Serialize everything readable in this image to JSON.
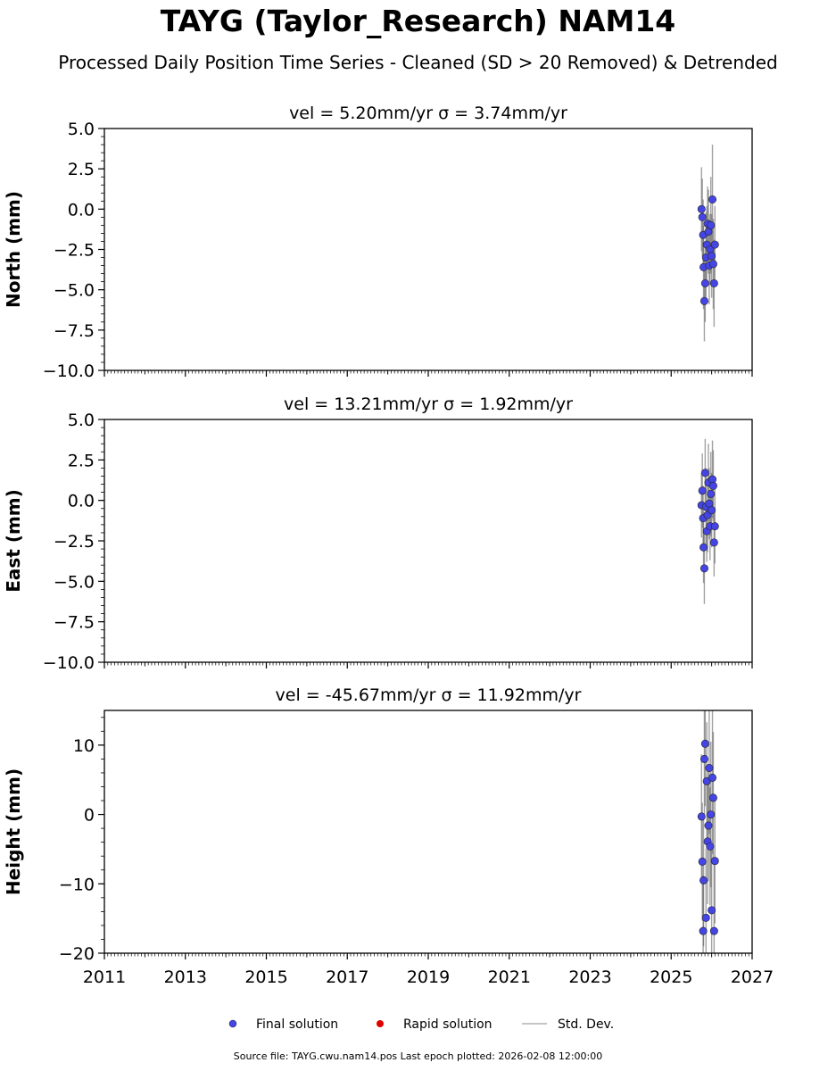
{
  "title": "TAYG (Taylor_Research) NAM14",
  "subtitle": "Processed Daily Position Time Series - Cleaned (SD > 20 Removed) & Detrended",
  "footer": "Source file: TAYG.cwu.nam14.pos  Last epoch plotted: 2026-02-08 12:00:00",
  "legend": [
    "Final solution",
    "Rapid solution",
    "Std. Dev."
  ],
  "colors": {
    "final": "#4545e6",
    "rapid": "#e00000",
    "stddev": "#b0b0b0",
    "errorbar": "#555555"
  },
  "chart_data": [
    {
      "type": "scatter",
      "panel": "north",
      "title": "vel = 5.20mm/yr   σ = 3.74mm/yr",
      "ylabel": "North (mm)",
      "xlim": [
        2011,
        2027
      ],
      "ylim": [
        -10,
        5
      ],
      "yticks": [
        "5.0",
        "2.5",
        "0.0",
        "−2.5",
        "−5.0",
        "−7.5",
        "−10.0"
      ],
      "ytick_values": [
        5,
        2.5,
        0,
        -2.5,
        -5,
        -7.5,
        -10
      ],
      "xticks": [
        "2011",
        "2013",
        "2015",
        "2017",
        "2019",
        "2021",
        "2023",
        "2025",
        "2027"
      ],
      "series": [
        {
          "name": "Final solution",
          "x": [
            2025.75,
            2025.77,
            2025.79,
            2025.8,
            2025.82,
            2025.84,
            2025.86,
            2025.88,
            2025.9,
            2025.92,
            2025.94,
            2025.96,
            2025.98,
            2026.0,
            2026.02,
            2026.04,
            2026.06,
            2026.08
          ],
          "y": [
            0.0,
            -0.5,
            -1.6,
            -3.6,
            -5.7,
            -4.6,
            -3.0,
            -2.2,
            -0.9,
            -1.4,
            -3.5,
            -2.5,
            -1.0,
            -2.9,
            0.6,
            -3.4,
            -4.6,
            -2.2
          ],
          "yerr": [
            2.6,
            2.4,
            2.2,
            2.6,
            2.5,
            2.4,
            2.8,
            2.4,
            2.3,
            2.6,
            2.4,
            2.2,
            3.0,
            2.6,
            3.4,
            2.8,
            2.7,
            2.4
          ]
        },
        {
          "name": "Rapid solution",
          "x": [],
          "y": []
        }
      ]
    },
    {
      "type": "scatter",
      "panel": "east",
      "title": "vel = 13.21mm/yr   σ = 1.92mm/yr",
      "ylabel": "East (mm)",
      "xlim": [
        2011,
        2027
      ],
      "ylim": [
        -10,
        5
      ],
      "yticks": [
        "5.0",
        "2.5",
        "0.0",
        "−2.5",
        "−5.0",
        "−7.5",
        "−10.0"
      ],
      "ytick_values": [
        5,
        2.5,
        0,
        -2.5,
        -5,
        -7.5,
        -10
      ],
      "xticks": [
        "2011",
        "2013",
        "2015",
        "2017",
        "2019",
        "2021",
        "2023",
        "2025",
        "2027"
      ],
      "series": [
        {
          "name": "Final solution",
          "x": [
            2025.75,
            2025.77,
            2025.79,
            2025.8,
            2025.82,
            2025.84,
            2025.86,
            2025.88,
            2025.9,
            2025.92,
            2025.94,
            2025.96,
            2025.98,
            2026.0,
            2026.02,
            2026.04,
            2026.06,
            2026.08
          ],
          "y": [
            -0.3,
            0.6,
            -1.1,
            -2.9,
            -4.2,
            1.7,
            -0.4,
            -1.9,
            -0.9,
            1.1,
            -0.2,
            -1.6,
            0.4,
            -0.6,
            1.3,
            0.9,
            -2.6,
            -1.6
          ],
          "yerr": [
            2.0,
            2.3,
            2.0,
            2.2,
            2.2,
            2.1,
            2.4,
            1.9,
            2.3,
            2.4,
            2.2,
            2.1,
            2.6,
            2.3,
            2.4,
            2.2,
            2.1,
            2.3
          ]
        },
        {
          "name": "Rapid solution",
          "x": [],
          "y": []
        }
      ]
    },
    {
      "type": "scatter",
      "panel": "height",
      "title": "vel = -45.67mm/yr   σ = 11.92mm/yr",
      "ylabel": "Height (mm)",
      "xlim": [
        2011,
        2027
      ],
      "ylim": [
        -20,
        15
      ],
      "yticks": [
        "10",
        "0",
        "−10",
        "−20"
      ],
      "ytick_values": [
        10,
        0,
        -10,
        -20
      ],
      "xticks": [
        "2011",
        "2013",
        "2015",
        "2017",
        "2019",
        "2021",
        "2023",
        "2025",
        "2027"
      ],
      "series": [
        {
          "name": "Final solution",
          "x": [
            2025.75,
            2025.77,
            2025.79,
            2025.8,
            2025.82,
            2025.84,
            2025.86,
            2025.88,
            2025.9,
            2025.92,
            2025.94,
            2025.96,
            2025.98,
            2026.0,
            2026.02,
            2026.04,
            2026.06,
            2026.08
          ],
          "y": [
            -0.3,
            -6.8,
            -16.8,
            -9.5,
            8.0,
            10.2,
            -14.9,
            4.8,
            -3.9,
            -1.6,
            6.7,
            -4.6,
            0.0,
            -13.8,
            5.3,
            2.4,
            -16.8,
            -6.7
          ],
          "yerr": [
            9.0,
            8.5,
            8.0,
            9.5,
            8.0,
            9.0,
            10.0,
            8.5,
            9.0,
            8.0,
            9.5,
            8.5,
            10.5,
            9.0,
            11.0,
            9.5,
            10.0,
            9.0
          ]
        },
        {
          "name": "Rapid solution",
          "x": [],
          "y": []
        }
      ]
    }
  ]
}
